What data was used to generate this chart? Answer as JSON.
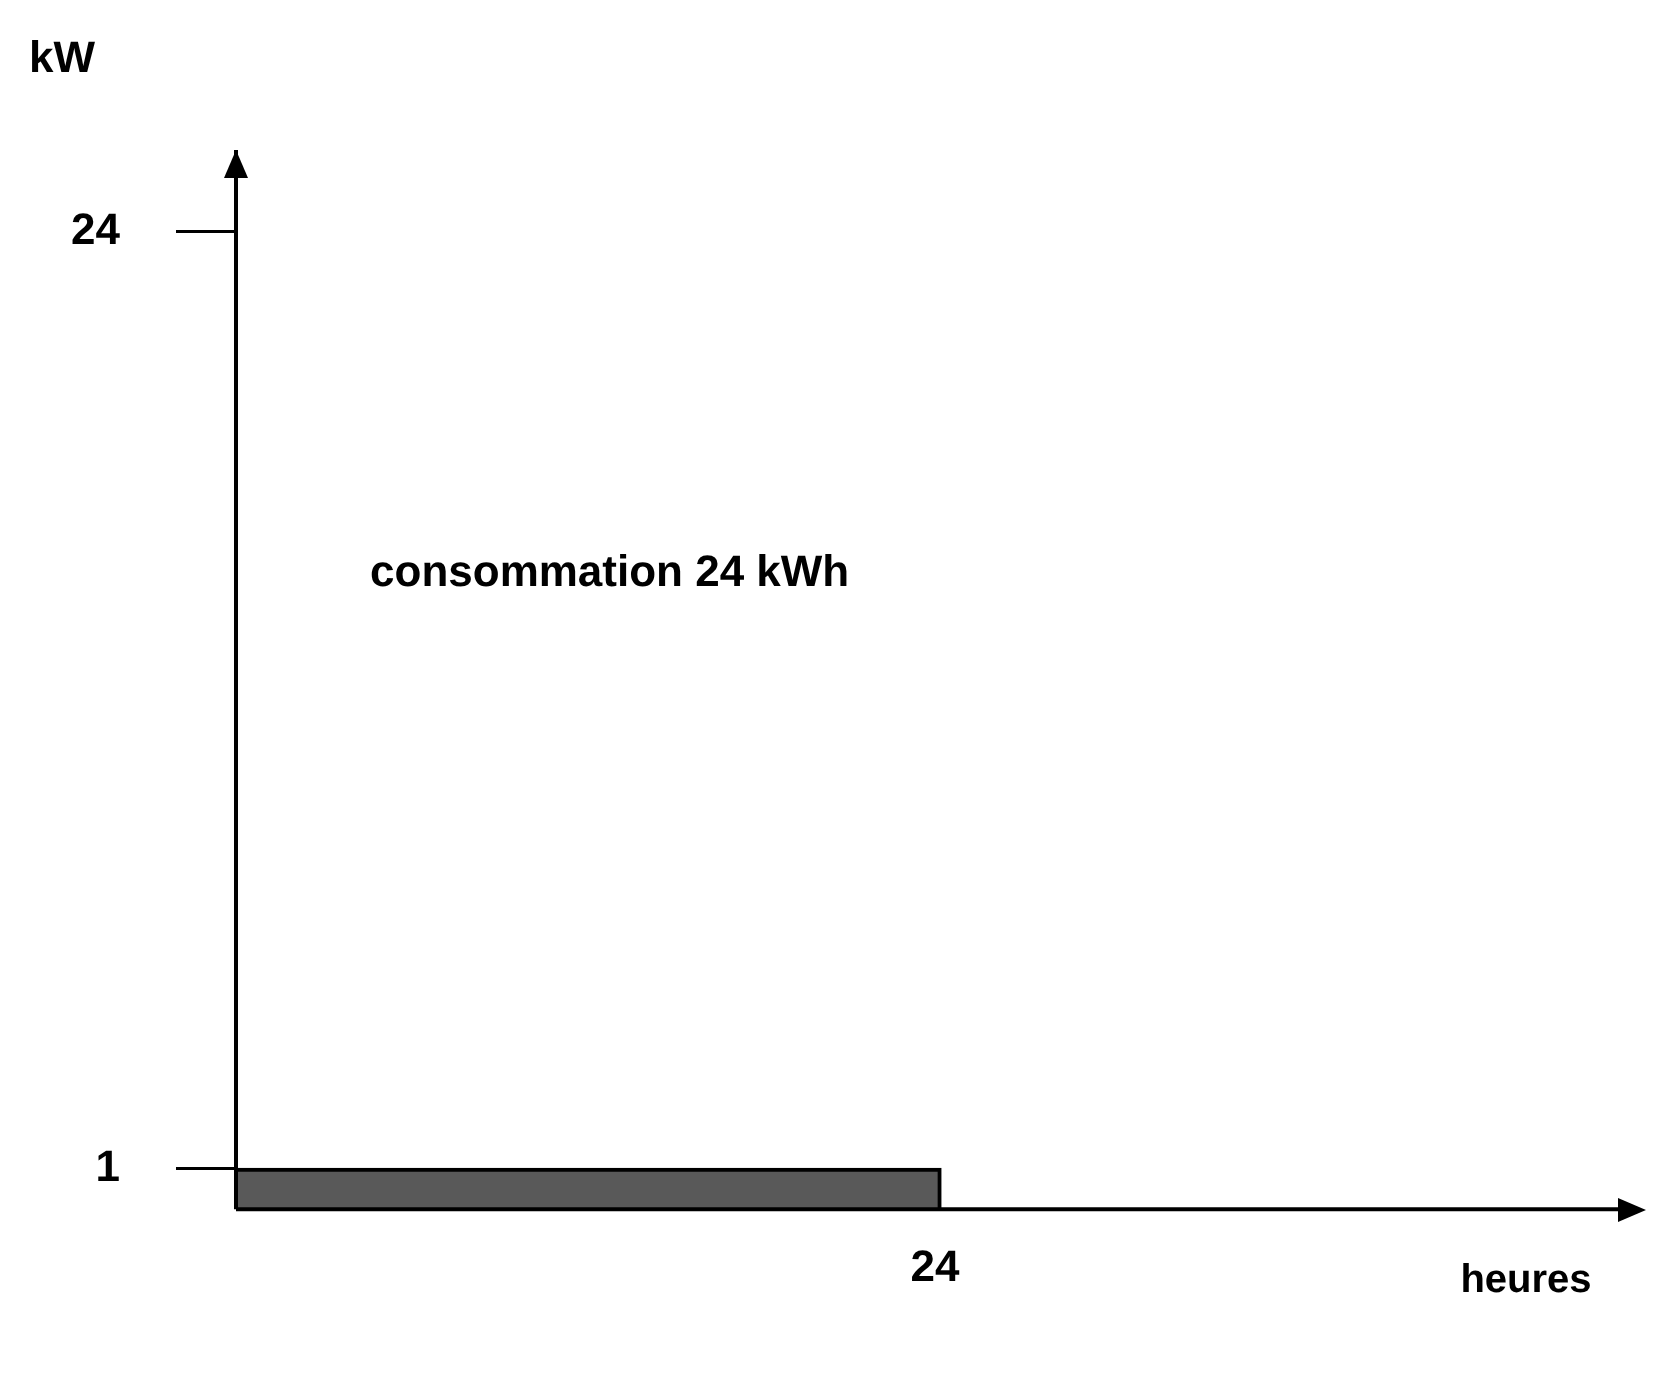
{
  "chart_data": {
    "type": "bar",
    "xlabel": "heures",
    "ylabel": "kW",
    "categories": [
      null,
      null
    ],
    "values": [
      1,
      null
    ],
    "color": "#595959",
    "ylim": [
      0,
      26
    ],
    "yticks": [
      1,
      24
    ],
    "grid": false,
    "legend": false,
    "annotations": [
      "consommation 24 kWh",
      "24"
    ]
  }
}
